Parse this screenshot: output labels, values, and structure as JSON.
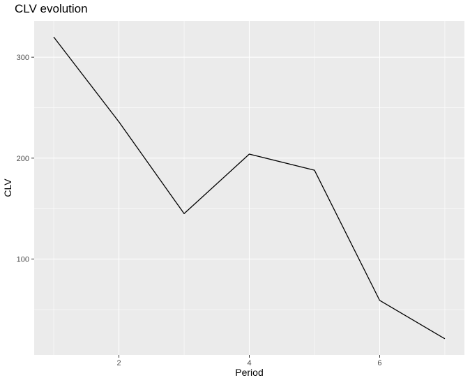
{
  "chart_data": {
    "type": "line",
    "title": "CLV evolution",
    "xlabel": "Period",
    "ylabel": "CLV",
    "x": [
      1,
      2,
      3,
      4,
      5,
      6,
      7
    ],
    "series": [
      {
        "values": [
          320,
          236,
          145,
          204,
          188,
          59,
          21
        ]
      }
    ],
    "xlim": [
      0.7,
      7.3
    ],
    "ylim": [
      5,
      336
    ],
    "x_ticks": [
      2,
      4,
      6
    ],
    "x_tick_labels": [
      "2",
      "4",
      "6"
    ],
    "x_minor_ticks": [
      1,
      3,
      5,
      7
    ],
    "y_ticks": [
      100,
      200,
      300
    ],
    "y_tick_labels": [
      "100",
      "200",
      "300"
    ],
    "y_minor_ticks": [
      50,
      150,
      250
    ],
    "grid": true,
    "colors": {
      "panel_background": "#ebebeb",
      "grid": "#ffffff",
      "line": "#000000",
      "tick_text": "#4d4d4d"
    }
  }
}
